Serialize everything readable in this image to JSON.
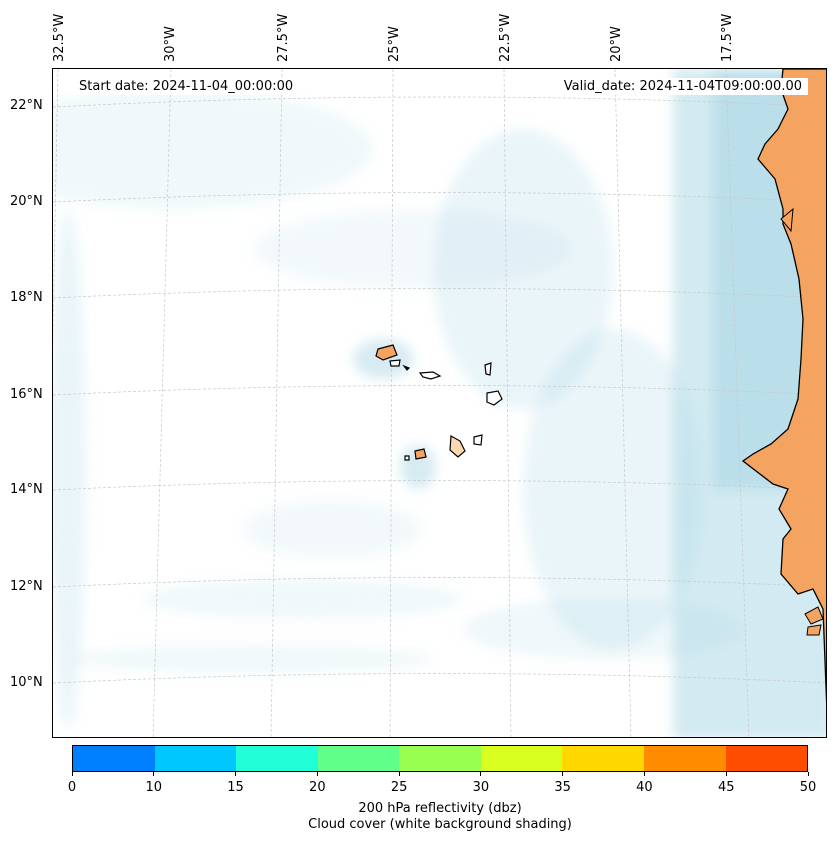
{
  "header": {
    "start_date": "Start date: 2024-11-04_00:00:00",
    "valid_date": "Valid_date: 2024-11-04T09:00:00.00"
  },
  "longitude_labels": [
    "32.5°W",
    "30°W",
    "27.5°W",
    "25°W",
    "22.5°W",
    "20°W",
    "17.5°W"
  ],
  "latitude_labels": [
    "22°N",
    "20°N",
    "18°N",
    "16°N",
    "14°N",
    "12°N",
    "10°N"
  ],
  "colorbar": {
    "colors": [
      "#0080ff",
      "#00c8ff",
      "#20ffd8",
      "#60ff8a",
      "#98ff50",
      "#d8ff20",
      "#ffd800",
      "#ff8c00",
      "#ff4d00"
    ],
    "tick_labels": [
      "0",
      "10",
      "15",
      "20",
      "25",
      "30",
      "35",
      "40",
      "45",
      "50"
    ],
    "title_line1": "200 hPa reflectivity (dbz)",
    "title_line2": "Cloud cover (white background shading)"
  },
  "colors": {
    "land": "#f4a460",
    "cloud": "#add8e6",
    "coastline": "#000000",
    "gridline": "#c8c8c8"
  }
}
